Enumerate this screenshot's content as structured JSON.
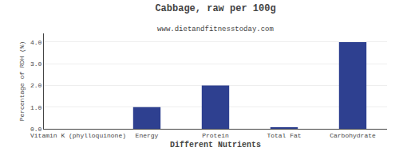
{
  "chart_data": {
    "type": "bar",
    "title": "Cabbage, raw per 100g",
    "subtitle": "www.dietandfitnesstoday.com",
    "xlabel": "Different Nutrients",
    "ylabel": "Percentage of RDH (%)",
    "categories": [
      "Vitamin K (phylloquinone)",
      "Energy",
      "Protein",
      "Total Fat",
      "Carbohydrate"
    ],
    "values": [
      0.0,
      1.0,
      2.0,
      0.05,
      4.0
    ],
    "color": "#2e4090",
    "ylim": [
      0,
      4.4
    ],
    "yticks": [
      {
        "value": 0,
        "label": "0.0"
      },
      {
        "value": 1,
        "label": "1.0"
      },
      {
        "value": 2,
        "label": "2.0"
      },
      {
        "value": 3,
        "label": "3.0"
      },
      {
        "value": 4,
        "label": "4.0"
      }
    ],
    "grid": true
  }
}
